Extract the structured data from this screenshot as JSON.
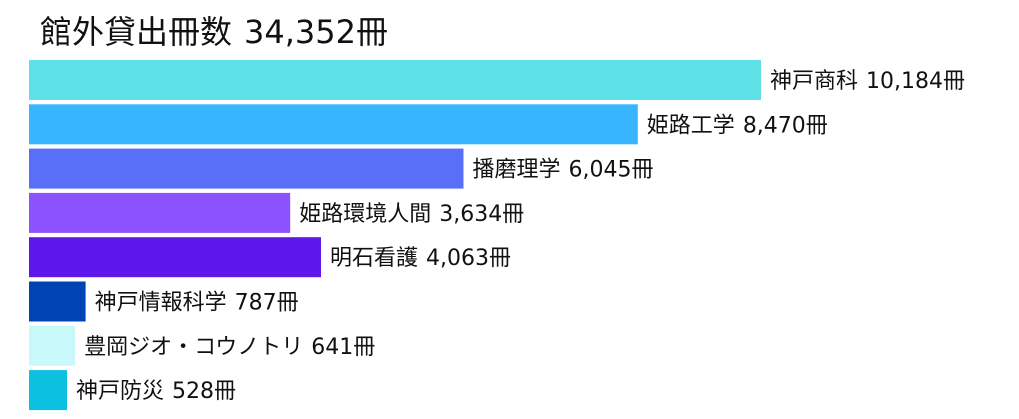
{
  "chart_data": {
    "type": "bar",
    "orientation": "horizontal",
    "title": "館外貸出冊数",
    "total_label": "34,352冊",
    "unit": "冊",
    "xlabel": "",
    "ylabel": "",
    "grid": false,
    "legend": "none",
    "series": [
      {
        "values": [
          10184,
          8470,
          6045,
          3634,
          4063,
          787,
          641,
          528
        ]
      }
    ],
    "categories": [
      "神戸商科",
      "姫路工学",
      "播磨理学",
      "姫路環境人間",
      "明石看護",
      "神戸情報科学",
      "豊岡ジオ・コウノトリ",
      "神戸防災"
    ],
    "value_labels": [
      "10,184冊",
      "8,470冊",
      "6,045冊",
      "3,634冊",
      "4,063冊",
      "787冊",
      "641冊",
      "528冊"
    ],
    "colors": [
      "#5ee1e6",
      "#38b5ff",
      "#5a6ff7",
      "#8c52ff",
      "#5e17eb",
      "#0043b5",
      "#c9f8fb",
      "#0cc0df"
    ]
  }
}
